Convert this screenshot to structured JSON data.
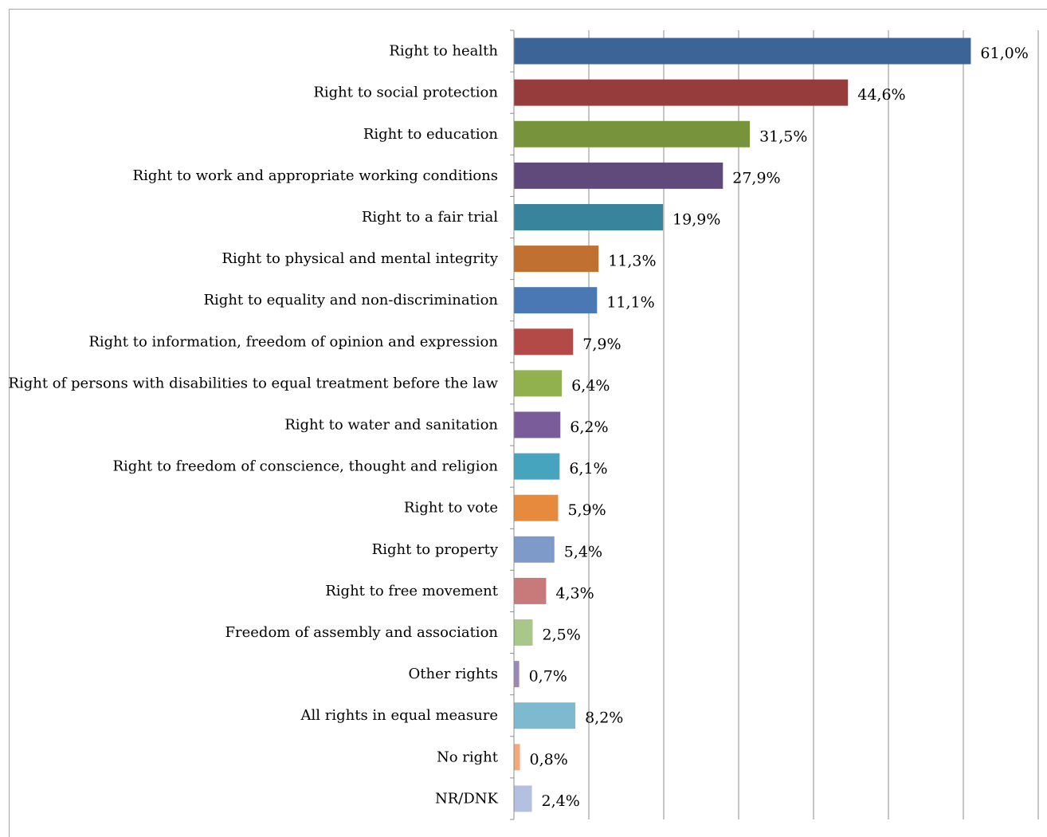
{
  "chart_data": {
    "type": "bar",
    "orientation": "horizontal",
    "title": "",
    "xlabel": "",
    "ylabel": "",
    "xlim": [
      0,
      70
    ],
    "grid": true,
    "legend": "none",
    "categories": [
      "Right to health",
      "Right to social protection",
      "Right to education",
      "Right to work and appropriate working conditions",
      "Right to a fair trial",
      "Right to physical and mental integrity",
      "Right to equality and non-discrimination",
      "Right to information, freedom of opinion and expression",
      "Right of persons with disabilities to equal treatment before the law",
      "Right to water and sanitation",
      "Right to freedom of conscience, thought and religion",
      "Right to vote",
      "Right to property",
      "Right to free movement",
      "Freedom of assembly and association",
      "Other rights",
      "All rights in equal measure",
      "No right",
      "NR/DNK"
    ],
    "values": [
      61.0,
      44.6,
      31.5,
      27.9,
      19.9,
      11.3,
      11.1,
      7.9,
      6.4,
      6.2,
      6.1,
      5.9,
      5.4,
      4.3,
      2.5,
      0.7,
      8.2,
      0.8,
      2.4
    ],
    "value_labels": [
      "61,0%",
      "44,6%",
      "31,5%",
      "27,9%",
      "19,9%",
      "11,3%",
      "11,1%",
      "7,9%",
      "6,4%",
      "6,2%",
      "6,1%",
      "5,9%",
      "5,4%",
      "4,3%",
      "2,5%",
      "0,7%",
      "8,2%",
      "0,8%",
      "2,4%"
    ],
    "colors": [
      "#3c6496",
      "#963c3c",
      "#77933c",
      "#604a7b",
      "#38849c",
      "#c07030",
      "#4a78b4",
      "#b44a48",
      "#91b04e",
      "#7a5c9a",
      "#46a4bf",
      "#e68a3e",
      "#7e9ac8",
      "#c87a7a",
      "#a8c88a",
      "#9c88b8",
      "#7dbad0",
      "#f5a87a",
      "#b4c0e0"
    ]
  }
}
